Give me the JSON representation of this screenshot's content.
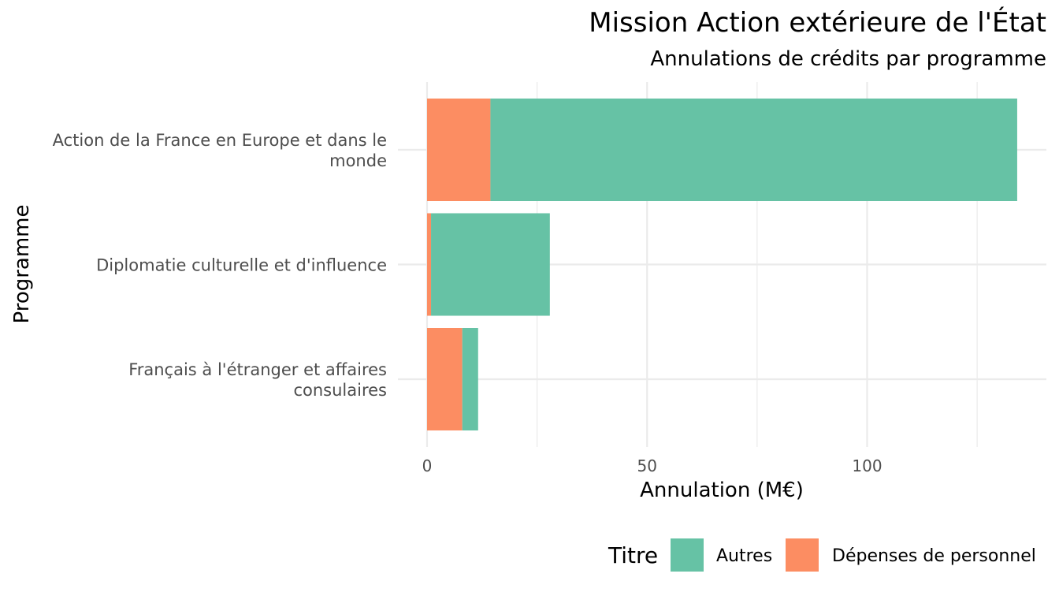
{
  "chart_data": {
    "type": "bar",
    "orientation": "horizontal",
    "stacked": true,
    "title": "Mission Action extérieure de l'État",
    "subtitle": "Annulations de crédits par programme",
    "xlabel": "Annulation (M€)",
    "ylabel": "Programme",
    "xlim": [
      0,
      140
    ],
    "x_ticks": [
      "0",
      "50",
      "100"
    ],
    "x_tick_values": [
      0,
      50,
      100
    ],
    "grid": true,
    "legend_position": "bottom",
    "legend_title": "Titre",
    "categories": [
      "Action de la France en Europe et dans le monde",
      "Diplomatie culturelle et d'influence",
      "Français à l'étranger et affaires consulaires"
    ],
    "category_lines": [
      [
        "Action de la France en Europe et dans le",
        "monde"
      ],
      [
        "Diplomatie culturelle et d'influence"
      ],
      [
        "Français à l'étranger et affaires",
        "consulaires"
      ]
    ],
    "series": [
      {
        "name": "Dépenses de personnel",
        "color": "#FC8D62",
        "values": [
          14.4,
          0.9,
          8.0
        ]
      },
      {
        "name": "Autres",
        "color": "#66C2A5",
        "values": [
          119.7,
          27.0,
          3.6
        ]
      }
    ],
    "legend_order": [
      "Autres",
      "Dépenses de personnel"
    ]
  }
}
